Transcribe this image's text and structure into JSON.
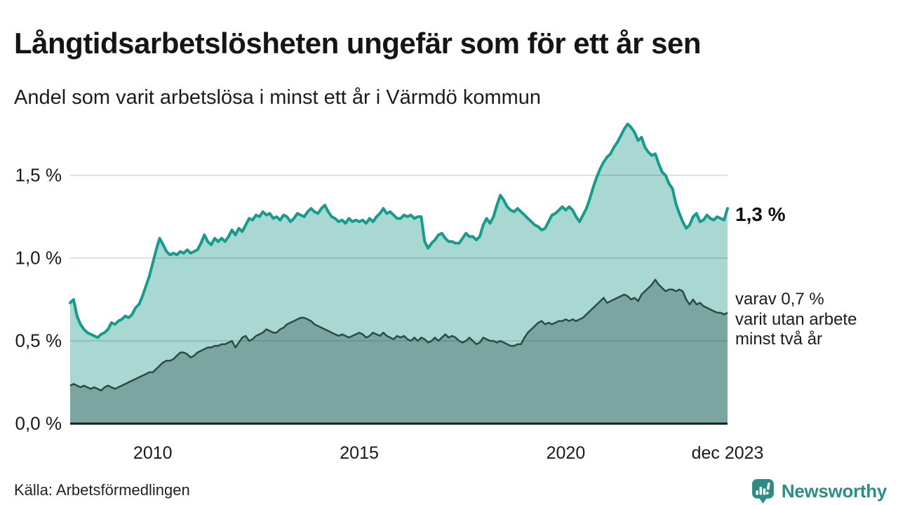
{
  "title": "Långtidsarbetslösheten ungefär som för ett år sen",
  "subtitle": "Andel som varit arbetslösa i minst ett år i Värmdö kommun",
  "source": "Källa: Arbetsförmedlingen",
  "branding": {
    "name": "Newsworthy",
    "icon": "newsworthy-speech-bubble-bar-chart-icon",
    "color": "#2d8c85"
  },
  "annotations": {
    "end_value_label": "1,3 %",
    "detail_lines": [
      "varav 0,7 %",
      "varit utan arbete",
      "minst två år"
    ]
  },
  "chart_data": {
    "type": "area",
    "title": "Långtidsarbetslösheten ungefär som för ett år sen",
    "subtitle": "Andel som varit arbetslösa i minst ett år i Värmdö kommun",
    "x_unit": "month",
    "x_start": "2008-01",
    "x_end": "2023-12",
    "y_unit": "%",
    "ylim": [
      0,
      1.9
    ],
    "grid": "horizontal",
    "axis_color": "#1a1a1a",
    "grid_color": "rgba(40,70,75,0.16)",
    "y_ticks": [
      {
        "value": 0,
        "label": "0,0 %"
      },
      {
        "value": 0.5,
        "label": "0,5 %"
      },
      {
        "value": 1,
        "label": "1,0 %"
      },
      {
        "value": 1.5,
        "label": "1,5 %"
      }
    ],
    "x_ticks": [
      {
        "month_index": 24,
        "label": "2010"
      },
      {
        "month_index": 84,
        "label": "2015"
      },
      {
        "month_index": 144,
        "label": "2020"
      },
      {
        "month_index": 191,
        "label": "dec 2023"
      }
    ],
    "series": [
      {
        "name": "Andel som varit arbetslösa i minst ett år",
        "end_value_label": "1,3 %",
        "stroke": "#169b8d",
        "fill": "#a9d7d1",
        "stroke_width": 4,
        "values": [
          0.73,
          0.75,
          0.65,
          0.6,
          0.57,
          0.55,
          0.54,
          0.53,
          0.52,
          0.54,
          0.55,
          0.57,
          0.61,
          0.6,
          0.62,
          0.63,
          0.65,
          0.64,
          0.66,
          0.7,
          0.72,
          0.77,
          0.83,
          0.89,
          0.97,
          1.05,
          1.12,
          1.08,
          1.04,
          1.02,
          1.03,
          1.02,
          1.04,
          1.03,
          1.05,
          1.03,
          1.04,
          1.05,
          1.09,
          1.14,
          1.1,
          1.08,
          1.12,
          1.1,
          1.12,
          1.1,
          1.13,
          1.17,
          1.14,
          1.18,
          1.16,
          1.2,
          1.24,
          1.23,
          1.26,
          1.25,
          1.28,
          1.26,
          1.27,
          1.24,
          1.25,
          1.23,
          1.26,
          1.25,
          1.22,
          1.24,
          1.27,
          1.26,
          1.25,
          1.28,
          1.3,
          1.28,
          1.27,
          1.3,
          1.32,
          1.28,
          1.25,
          1.24,
          1.22,
          1.23,
          1.21,
          1.24,
          1.22,
          1.23,
          1.22,
          1.23,
          1.21,
          1.24,
          1.22,
          1.25,
          1.27,
          1.3,
          1.27,
          1.28,
          1.26,
          1.24,
          1.24,
          1.26,
          1.25,
          1.26,
          1.24,
          1.25,
          1.25,
          1.1,
          1.06,
          1.09,
          1.11,
          1.14,
          1.15,
          1.12,
          1.1,
          1.1,
          1.09,
          1.09,
          1.12,
          1.15,
          1.13,
          1.13,
          1.11,
          1.13,
          1.2,
          1.24,
          1.21,
          1.25,
          1.32,
          1.38,
          1.35,
          1.31,
          1.29,
          1.28,
          1.3,
          1.28,
          1.26,
          1.24,
          1.22,
          1.2,
          1.19,
          1.17,
          1.18,
          1.22,
          1.26,
          1.27,
          1.29,
          1.31,
          1.29,
          1.31,
          1.29,
          1.25,
          1.22,
          1.26,
          1.3,
          1.36,
          1.43,
          1.49,
          1.54,
          1.58,
          1.61,
          1.63,
          1.67,
          1.7,
          1.74,
          1.78,
          1.81,
          1.79,
          1.76,
          1.71,
          1.73,
          1.67,
          1.64,
          1.62,
          1.63,
          1.57,
          1.52,
          1.5,
          1.45,
          1.42,
          1.33,
          1.27,
          1.22,
          1.18,
          1.2,
          1.25,
          1.27,
          1.22,
          1.23,
          1.26,
          1.24,
          1.23,
          1.25,
          1.24,
          1.23,
          1.3
        ]
      },
      {
        "name": "varav utan arbete minst två år",
        "end_value_label": "varav 0,7 % varit utan arbete minst två år",
        "stroke": "#2e4a47",
        "fill": "#7aa5a0",
        "stroke_width": 2.5,
        "values": [
          0.23,
          0.24,
          0.23,
          0.22,
          0.23,
          0.22,
          0.21,
          0.22,
          0.21,
          0.2,
          0.22,
          0.23,
          0.22,
          0.21,
          0.22,
          0.23,
          0.24,
          0.25,
          0.26,
          0.27,
          0.28,
          0.29,
          0.3,
          0.31,
          0.31,
          0.33,
          0.35,
          0.37,
          0.38,
          0.38,
          0.39,
          0.41,
          0.43,
          0.43,
          0.42,
          0.4,
          0.41,
          0.43,
          0.44,
          0.45,
          0.46,
          0.46,
          0.47,
          0.47,
          0.48,
          0.48,
          0.49,
          0.5,
          0.46,
          0.49,
          0.52,
          0.53,
          0.5,
          0.51,
          0.53,
          0.54,
          0.55,
          0.57,
          0.56,
          0.55,
          0.55,
          0.57,
          0.58,
          0.6,
          0.61,
          0.62,
          0.63,
          0.64,
          0.64,
          0.63,
          0.62,
          0.6,
          0.59,
          0.58,
          0.57,
          0.56,
          0.55,
          0.54,
          0.53,
          0.54,
          0.53,
          0.52,
          0.53,
          0.54,
          0.55,
          0.54,
          0.52,
          0.53,
          0.55,
          0.54,
          0.53,
          0.55,
          0.53,
          0.52,
          0.51,
          0.53,
          0.52,
          0.53,
          0.51,
          0.5,
          0.52,
          0.5,
          0.52,
          0.51,
          0.49,
          0.5,
          0.52,
          0.5,
          0.52,
          0.54,
          0.52,
          0.53,
          0.52,
          0.5,
          0.49,
          0.5,
          0.52,
          0.5,
          0.48,
          0.49,
          0.52,
          0.51,
          0.5,
          0.5,
          0.49,
          0.5,
          0.49,
          0.48,
          0.47,
          0.47,
          0.48,
          0.48,
          0.52,
          0.55,
          0.57,
          0.59,
          0.61,
          0.62,
          0.6,
          0.61,
          0.6,
          0.61,
          0.62,
          0.62,
          0.63,
          0.62,
          0.63,
          0.62,
          0.63,
          0.64,
          0.66,
          0.68,
          0.7,
          0.72,
          0.74,
          0.76,
          0.73,
          0.74,
          0.75,
          0.76,
          0.77,
          0.78,
          0.77,
          0.75,
          0.76,
          0.74,
          0.78,
          0.8,
          0.82,
          0.84,
          0.87,
          0.84,
          0.82,
          0.8,
          0.81,
          0.81,
          0.8,
          0.81,
          0.8,
          0.75,
          0.72,
          0.75,
          0.72,
          0.73,
          0.71,
          0.7,
          0.69,
          0.68,
          0.67,
          0.67,
          0.66,
          0.67
        ]
      }
    ]
  }
}
